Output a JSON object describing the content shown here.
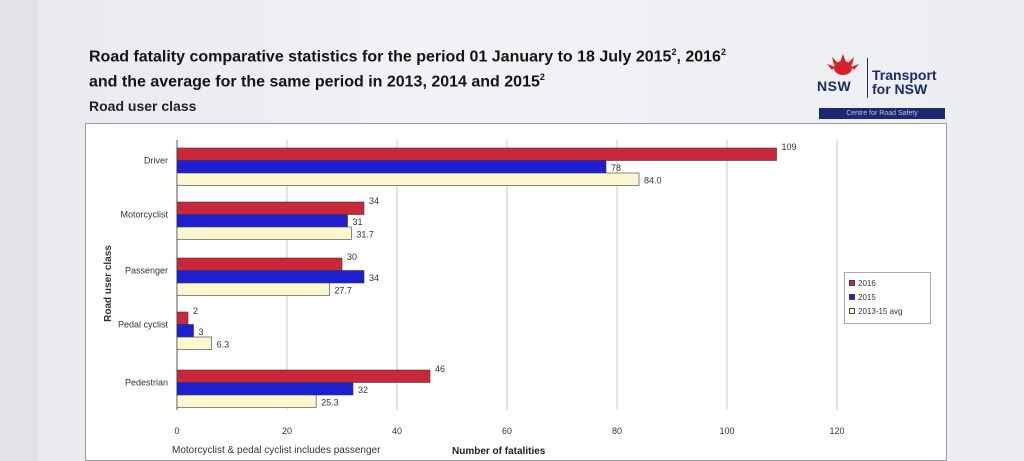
{
  "header": {
    "title_line1": "Road fatality comparative statistics for the period 01 January to 18 July 2015",
    "title_sup1": "2",
    "title_mid": ", 2016",
    "title_sup2": "2",
    "title_line2": "and the average for the same period in 2013, 2014 and 2015",
    "title_sup3": "2",
    "subtitle": "Road user class"
  },
  "logo": {
    "nsw": "NSW",
    "transport_line1": "Transport",
    "transport_line2": "for NSW",
    "strip_text": "Centre for Road Safety"
  },
  "chart_data": {
    "type": "bar",
    "orientation": "horizontal",
    "categories": [
      "Driver",
      "Motorcyclist",
      "Passenger",
      "Pedal cyclist",
      "Pedestrian"
    ],
    "series": [
      {
        "name": "2016",
        "values": [
          109,
          34,
          30,
          2,
          46
        ],
        "labels": [
          "109",
          "34",
          "30",
          "2",
          "46"
        ],
        "color": "#c8283a"
      },
      {
        "name": "2015",
        "values": [
          78,
          31,
          34,
          3,
          32
        ],
        "labels": [
          "78",
          "31",
          "34",
          "3",
          "32"
        ],
        "color": "#1d1fd0"
      },
      {
        "name": "2013-15 avg",
        "values": [
          84.0,
          31.7,
          27.7,
          6.3,
          25.3
        ],
        "labels": [
          "84.0",
          "31.7",
          "27.7",
          "6.3",
          "25.3"
        ],
        "color": "#fbf7cf"
      }
    ],
    "xlabel": "Number of fatalities",
    "ylabel": "Road user class",
    "xlim": [
      0,
      120
    ],
    "xticks": [
      "0",
      "20",
      "40",
      "60",
      "80",
      "100",
      "120"
    ],
    "note": "Motorcyclist & pedal cyclist includes passenger",
    "legend_position": "right",
    "grid": true
  }
}
